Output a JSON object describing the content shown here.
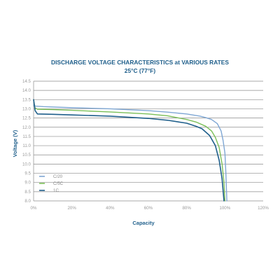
{
  "chart_data": {
    "type": "line",
    "title": "DISCHARGE VOLTAGE CHARACTERISTICS at VARIOUS RATES",
    "subtitle": "25°C (77°F)",
    "xlabel": "Capacity",
    "ylabel": "Voltage (V)",
    "xlim": [
      0,
      120
    ],
    "ylim": [
      8.0,
      14.5
    ],
    "x_ticks": [
      0,
      20,
      40,
      60,
      80,
      100,
      120
    ],
    "x_tick_labels": [
      "0%",
      "20%",
      "40%",
      "60%",
      "80%",
      "100%",
      "120%"
    ],
    "y_ticks": [
      8.0,
      8.5,
      9.0,
      9.5,
      10.0,
      10.5,
      11.0,
      11.5,
      12.0,
      12.5,
      13.0,
      13.5,
      14.0,
      14.5
    ],
    "y_tick_labels": [
      "8.0",
      "8.5",
      "9.0",
      "9.5",
      "10.0",
      "10.5",
      "11.0",
      "11.5",
      "12.0",
      "12.5",
      "13.0",
      "13.5",
      "14.0",
      "14.5"
    ],
    "grid": "horizontal",
    "legend_position": "bottom-left",
    "series": [
      {
        "name": "C/20",
        "color": "#7fa7d4",
        "points": [
          [
            0,
            13.2
          ],
          [
            1,
            13.15
          ],
          [
            5,
            13.12
          ],
          [
            20,
            13.06
          ],
          [
            40,
            13.0
          ],
          [
            60,
            12.9
          ],
          [
            70,
            12.82
          ],
          [
            80,
            12.72
          ],
          [
            87,
            12.6
          ],
          [
            90,
            12.52
          ],
          [
            93,
            12.42
          ],
          [
            96,
            12.2
          ],
          [
            98,
            11.8
          ],
          [
            99,
            11.3
          ],
          [
            100,
            10.6
          ],
          [
            100.5,
            9.5
          ],
          [
            101,
            8.0
          ]
        ]
      },
      {
        "name": "C/5C",
        "color": "#7bbf58",
        "points": [
          [
            0,
            13.5
          ],
          [
            0.7,
            13.05
          ],
          [
            2,
            12.98
          ],
          [
            10,
            12.96
          ],
          [
            20,
            12.92
          ],
          [
            40,
            12.83
          ],
          [
            60,
            12.72
          ],
          [
            70,
            12.62
          ],
          [
            80,
            12.42
          ],
          [
            85,
            12.28
          ],
          [
            90,
            12.05
          ],
          [
            93,
            11.8
          ],
          [
            95,
            11.45
          ],
          [
            97,
            10.9
          ],
          [
            98.5,
            10.0
          ],
          [
            99.5,
            9.0
          ],
          [
            100,
            8.0
          ]
        ]
      },
      {
        "name": "1C",
        "color": "#1f5f8b",
        "points": [
          [
            0,
            13.5
          ],
          [
            0.8,
            12.9
          ],
          [
            2,
            12.72
          ],
          [
            10,
            12.7
          ],
          [
            20,
            12.67
          ],
          [
            40,
            12.6
          ],
          [
            60,
            12.48
          ],
          [
            70,
            12.38
          ],
          [
            80,
            12.22
          ],
          [
            85,
            12.05
          ],
          [
            88,
            11.92
          ],
          [
            92,
            11.55
          ],
          [
            95,
            11.0
          ],
          [
            97,
            10.2
          ],
          [
            98.5,
            9.2
          ],
          [
            99.5,
            8.0
          ]
        ]
      }
    ]
  }
}
